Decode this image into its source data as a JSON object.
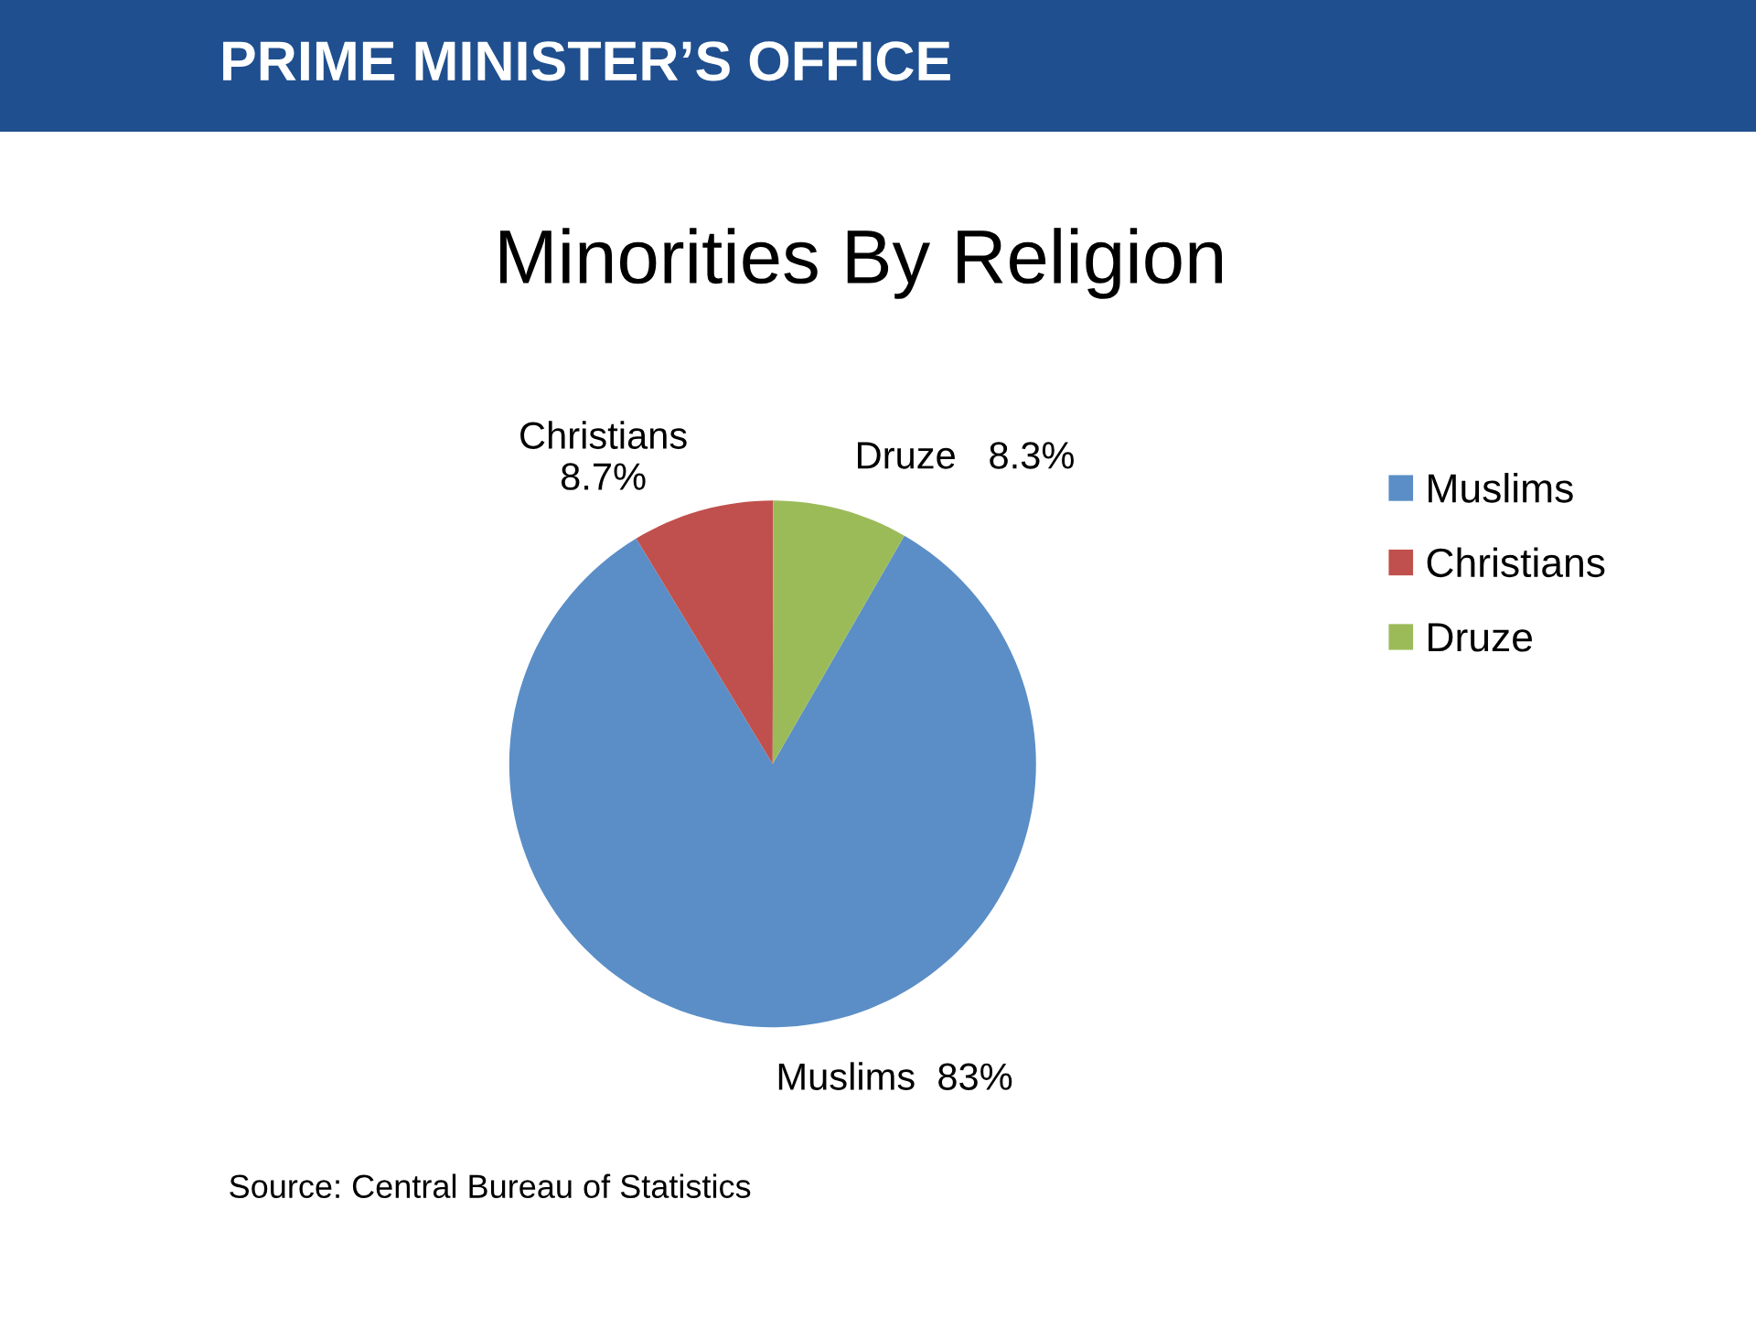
{
  "chart_data": {
    "type": "pie",
    "title": "Minorities By Religion",
    "categories": [
      "Muslims",
      "Christians",
      "Druze"
    ],
    "values": [
      83,
      8.7,
      8.3
    ],
    "colors": [
      "#5b8ec6",
      "#c0504d",
      "#9bbb59"
    ],
    "value_labels": [
      "Muslims  83%",
      "Christians\n8.7%",
      "Druze   8.3%"
    ],
    "legend": "right",
    "annotations": [
      "PRIME MINISTER’S OFFICE",
      "Source: Central Bureau of Statistics"
    ]
  }
}
